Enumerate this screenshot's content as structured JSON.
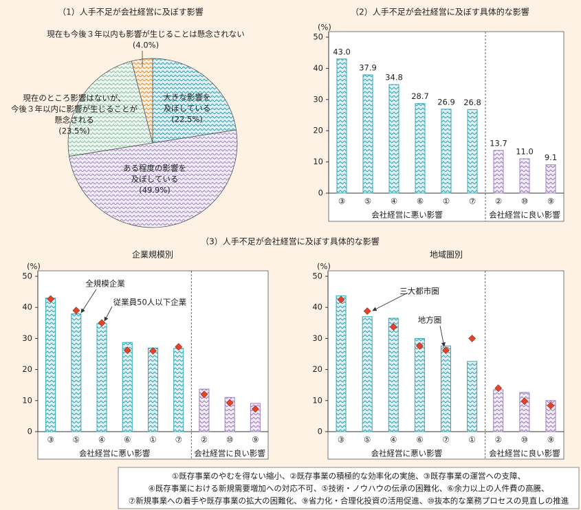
{
  "section_title": "（3）人手不足が会社経営に及ぼす具体的な影響",
  "chart_data": [
    {
      "type": "pie",
      "title": "（1）人手不足が会社経営に及ぼす影響",
      "labels": [
        [
          "大きな影響を",
          "及ぼしている"
        ],
        [
          "ある程度の影響を",
          "及ぼしている"
        ],
        [
          "現在のところ影響はないが、",
          "今後３年以内に影響が生じることが",
          "懸念される"
        ],
        [
          "現在も今後３年以内も影響が生じることは懸念されない"
        ]
      ],
      "values": [
        22.5,
        49.9,
        23.5,
        4.0
      ],
      "value_labels": [
        "(22.5%)",
        "(49.9%)",
        "(23.5%)",
        "(4.0%)"
      ],
      "colors": [
        "#2fa8b8",
        "#a98bc9",
        "#8cc3a4",
        "#e8922a"
      ]
    },
    {
      "type": "bar",
      "title": "（2）人手不足が会社経営に及ぼす具体的な影響",
      "ylabel": "(%)",
      "categories": [
        "③",
        "⑤",
        "④",
        "⑥",
        "①",
        "⑦",
        "②",
        "⑩",
        "⑨"
      ],
      "groups": [
        "会社経営に悪い影響",
        "会社経営に良い影響"
      ],
      "values": [
        43.0,
        37.9,
        34.8,
        28.7,
        26.9,
        26.8,
        13.7,
        11.0,
        9.1
      ],
      "value_labels": [
        "43.0",
        "37.9",
        "34.8",
        "28.7",
        "26.9",
        "26.8",
        "13.7",
        "11.0",
        "9.1"
      ],
      "colors": [
        "#2fa8b8",
        "#2fa8b8",
        "#2fa8b8",
        "#2fa8b8",
        "#2fa8b8",
        "#2fa8b8",
        "#a07cc0",
        "#a07cc0",
        "#a07cc0"
      ],
      "ylim": [
        0,
        50
      ],
      "yticks": [
        0,
        10,
        20,
        30,
        40,
        50
      ]
    },
    {
      "type": "bar",
      "title": "企業規模別",
      "ylabel": "(%)",
      "categories": [
        "③",
        "⑤",
        "④",
        "⑥",
        "①",
        "⑦",
        "②",
        "⑩",
        "⑨"
      ],
      "groups": [
        "会社経営に悪い影響",
        "会社経営に良い影響"
      ],
      "series": [
        {
          "name": "全規模企業",
          "type": "bar",
          "colors": [
            "#2fa8b8",
            "#2fa8b8",
            "#2fa8b8",
            "#2fa8b8",
            "#2fa8b8",
            "#2fa8b8",
            "#a07cc0",
            "#a07cc0",
            "#a07cc0"
          ],
          "values": [
            43.0,
            37.9,
            34.8,
            28.7,
            26.9,
            26.8,
            13.7,
            11.0,
            9.1
          ]
        },
        {
          "name": "従業員50人以下企業",
          "type": "scatter",
          "color": "#e0452b",
          "values": [
            42.7,
            39.0,
            35.0,
            26.2,
            26.0,
            27.3,
            12.0,
            9.3,
            7.3
          ]
        }
      ],
      "ylim": [
        0,
        50
      ],
      "yticks": [
        0,
        10,
        20,
        30,
        40,
        50
      ]
    },
    {
      "type": "bar",
      "title": "地域圏別",
      "ylabel": "(%)",
      "categories": [
        "③",
        "⑤",
        "④",
        "⑥",
        "⑦",
        "①",
        "②",
        "⑩",
        "⑨"
      ],
      "groups": [
        "会社経営に悪い影響",
        "会社経営に良い影響"
      ],
      "series": [
        {
          "name": "三大都市圏",
          "type": "bar",
          "colors": [
            "#2fa8b8",
            "#2fa8b8",
            "#2fa8b8",
            "#2fa8b8",
            "#2fa8b8",
            "#2fa8b8",
            "#a07cc0",
            "#a07cc0",
            "#a07cc0"
          ],
          "values": [
            43.7,
            37.0,
            36.5,
            30.0,
            27.6,
            22.6,
            13.5,
            12.6,
            10.0
          ]
        },
        {
          "name": "地方圏",
          "type": "scatter",
          "color": "#e0452b",
          "values": [
            42.5,
            38.8,
            33.7,
            27.6,
            26.2,
            30.0,
            14.0,
            9.8,
            8.4
          ]
        }
      ],
      "ylim": [
        0,
        50
      ],
      "yticks": [
        0,
        10,
        20,
        30,
        40,
        50
      ]
    }
  ],
  "note": [
    "①既存事業のやむを得ない縮小、②既存事業の積極的な効率化の実施、③既存事業の運営への支障、",
    "④既存事業における新規需要増加への対応不可、⑤技術・ノウハウの伝承の困難化、⑥余力以上の人件費の高騰、",
    "⑦新規事業への着手や既存事業の拡大の困難化、⑨省力化・合理化投資の活用促進、⑩抜本的な業務プロセスの見直しの推進"
  ]
}
